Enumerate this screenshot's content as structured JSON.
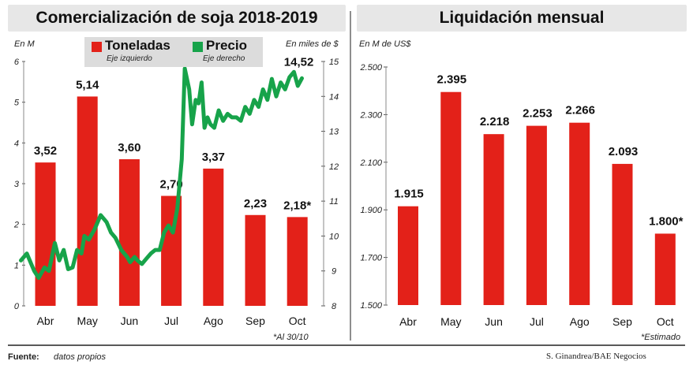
{
  "charts": {
    "left": {
      "title": "Comercialización de soja 2018-2019",
      "left_axis_label": "En M",
      "right_axis_label": "En miles de $",
      "legend": [
        {
          "name": "Toneladas",
          "sub": "Eje izquierdo",
          "color": "#e32119"
        },
        {
          "name": "Precio",
          "sub": "Eje derecho",
          "color": "#17a34a"
        }
      ],
      "note": "*Al 30/10",
      "bar_value_labels": [
        "3,52",
        "5,14",
        "3,60",
        "2,70",
        "3,37",
        "2,23",
        "2,18*"
      ],
      "price_end_label": "14,52",
      "left_ticks": [
        "0",
        "1",
        "2",
        "3",
        "4",
        "5",
        "6"
      ],
      "right_ticks": [
        "8",
        "9",
        "10",
        "11",
        "12",
        "13",
        "14",
        "15"
      ]
    },
    "right": {
      "title": "Liquidación mensual",
      "axis_label": "En M de US$",
      "note": "*Estimado",
      "bar_value_labels": [
        "1.915",
        "2.395",
        "2.218",
        "2.253",
        "2.266",
        "2.093",
        "1.800*"
      ],
      "ticks": [
        "1.500",
        "1.700",
        "1.900",
        "2.100",
        "2.300",
        "2.500"
      ]
    }
  },
  "footer": {
    "source_label": "Fuente:",
    "source_text": "datos propios",
    "credit": "S. Ginandrea/BAE Negocios"
  },
  "chart_data": [
    {
      "type": "bar",
      "title": "Comercialización de soja 2018-2019",
      "categories": [
        "Abr",
        "May",
        "Jun",
        "Jul",
        "Ago",
        "Sep",
        "Oct"
      ],
      "series": [
        {
          "name": "Toneladas",
          "axis": "left",
          "values": [
            3.52,
            5.14,
            3.6,
            2.7,
            3.37,
            2.23,
            2.18
          ],
          "color": "#e32119"
        },
        {
          "name": "Precio",
          "axis": "right",
          "type": "line",
          "color": "#17a34a",
          "points": [
            [
              0,
              9.3
            ],
            [
              0.2,
              9.5
            ],
            [
              0.45,
              9.0
            ],
            [
              0.6,
              8.8
            ],
            [
              0.8,
              9.1
            ],
            [
              0.95,
              9.0
            ],
            [
              1.15,
              9.8
            ],
            [
              1.3,
              9.3
            ],
            [
              1.45,
              9.6
            ],
            [
              1.6,
              9.05
            ],
            [
              1.75,
              9.1
            ],
            [
              1.9,
              9.6
            ],
            [
              2.05,
              9.5
            ],
            [
              2.15,
              10.0
            ],
            [
              2.3,
              9.9
            ],
            [
              2.5,
              10.2
            ],
            [
              2.7,
              10.6
            ],
            [
              2.9,
              10.4
            ],
            [
              3.05,
              10.1
            ],
            [
              3.2,
              9.95
            ],
            [
              3.4,
              9.6
            ],
            [
              3.5,
              9.5
            ],
            [
              3.6,
              9.4
            ],
            [
              3.7,
              9.25
            ],
            [
              3.85,
              9.4
            ],
            [
              3.95,
              9.3
            ],
            [
              4.1,
              9.2
            ],
            [
              4.25,
              9.35
            ],
            [
              4.4,
              9.5
            ],
            [
              4.55,
              9.6
            ],
            [
              4.7,
              9.6
            ],
            [
              4.85,
              10.1
            ],
            [
              5.0,
              10.3
            ],
            [
              5.15,
              10.1
            ],
            [
              5.3,
              10.8
            ],
            [
              5.45,
              12.2
            ],
            [
              5.55,
              14.8
            ],
            [
              5.7,
              14.2
            ],
            [
              5.8,
              13.2
            ],
            [
              5.92,
              13.9
            ],
            [
              6.02,
              13.8
            ],
            [
              6.12,
              14.4
            ],
            [
              6.22,
              13.1
            ],
            [
              6.32,
              13.4
            ],
            [
              6.42,
              13.2
            ],
            [
              6.55,
              13.1
            ],
            [
              6.7,
              13.6
            ],
            [
              6.85,
              13.3
            ],
            [
              7.0,
              13.5
            ],
            [
              7.15,
              13.4
            ],
            [
              7.3,
              13.4
            ],
            [
              7.45,
              13.3
            ],
            [
              7.6,
              13.7
            ],
            [
              7.75,
              13.5
            ],
            [
              7.9,
              13.9
            ],
            [
              8.05,
              13.7
            ],
            [
              8.2,
              14.2
            ],
            [
              8.35,
              13.9
            ],
            [
              8.5,
              14.5
            ],
            [
              8.65,
              14.0
            ],
            [
              8.8,
              14.4
            ],
            [
              8.95,
              14.2
            ],
            [
              9.1,
              14.55
            ],
            [
              9.25,
              14.7
            ],
            [
              9.38,
              14.3
            ],
            [
              9.52,
              14.52
            ]
          ]
        }
      ],
      "ylim_left": [
        0,
        6
      ],
      "ylim_right": [
        8,
        15
      ],
      "ylabel_left": "En M",
      "ylabel_right": "En miles de $",
      "legend_position": "top-center"
    },
    {
      "type": "bar",
      "title": "Liquidación mensual",
      "categories": [
        "Abr",
        "May",
        "Jun",
        "Jul",
        "Ago",
        "Sep",
        "Oct"
      ],
      "values": [
        1915,
        2395,
        2218,
        2253,
        2266,
        2093,
        1800
      ],
      "ylabel": "En M de US$",
      "ylim": [
        1500,
        2500
      ],
      "color": "#e32119"
    }
  ]
}
